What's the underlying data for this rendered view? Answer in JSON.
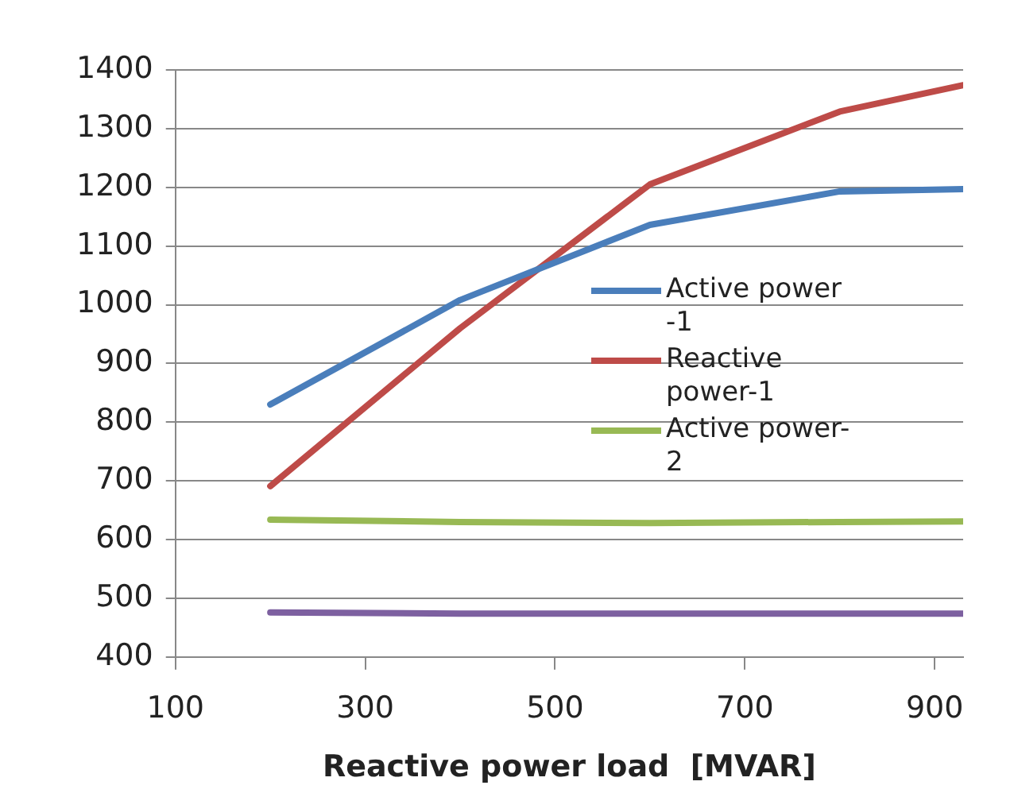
{
  "chart_data": {
    "type": "line",
    "xlabel": "Reactive power load  [MVAR]",
    "x": [
      200,
      400,
      600,
      800,
      930
    ],
    "xlim": [
      100,
      930
    ],
    "xticks": [
      100,
      300,
      500,
      700,
      900
    ],
    "ylim": [
      400,
      1400
    ],
    "yticks": [
      400,
      500,
      600,
      700,
      800,
      900,
      1000,
      1100,
      1200,
      1300,
      1400
    ],
    "grid": "y",
    "legend": "right",
    "marker": "none",
    "line_style": "solid",
    "series": [
      {
        "name": "Active power -1",
        "color": "#4a7ebb",
        "values": [
          830,
          1008,
          1136,
          1193,
          1197
        ]
      },
      {
        "name": "Reactive power-1",
        "color": "#be4b48",
        "values": [
          691,
          960,
          1205,
          1329,
          1374
        ]
      },
      {
        "name": "Active power-2",
        "color": "#98b954",
        "values": [
          634,
          630,
          628,
          630,
          631
        ]
      },
      {
        "color": "#7d60a0",
        "values": [
          476,
          474,
          474,
          474,
          474
        ]
      }
    ]
  }
}
